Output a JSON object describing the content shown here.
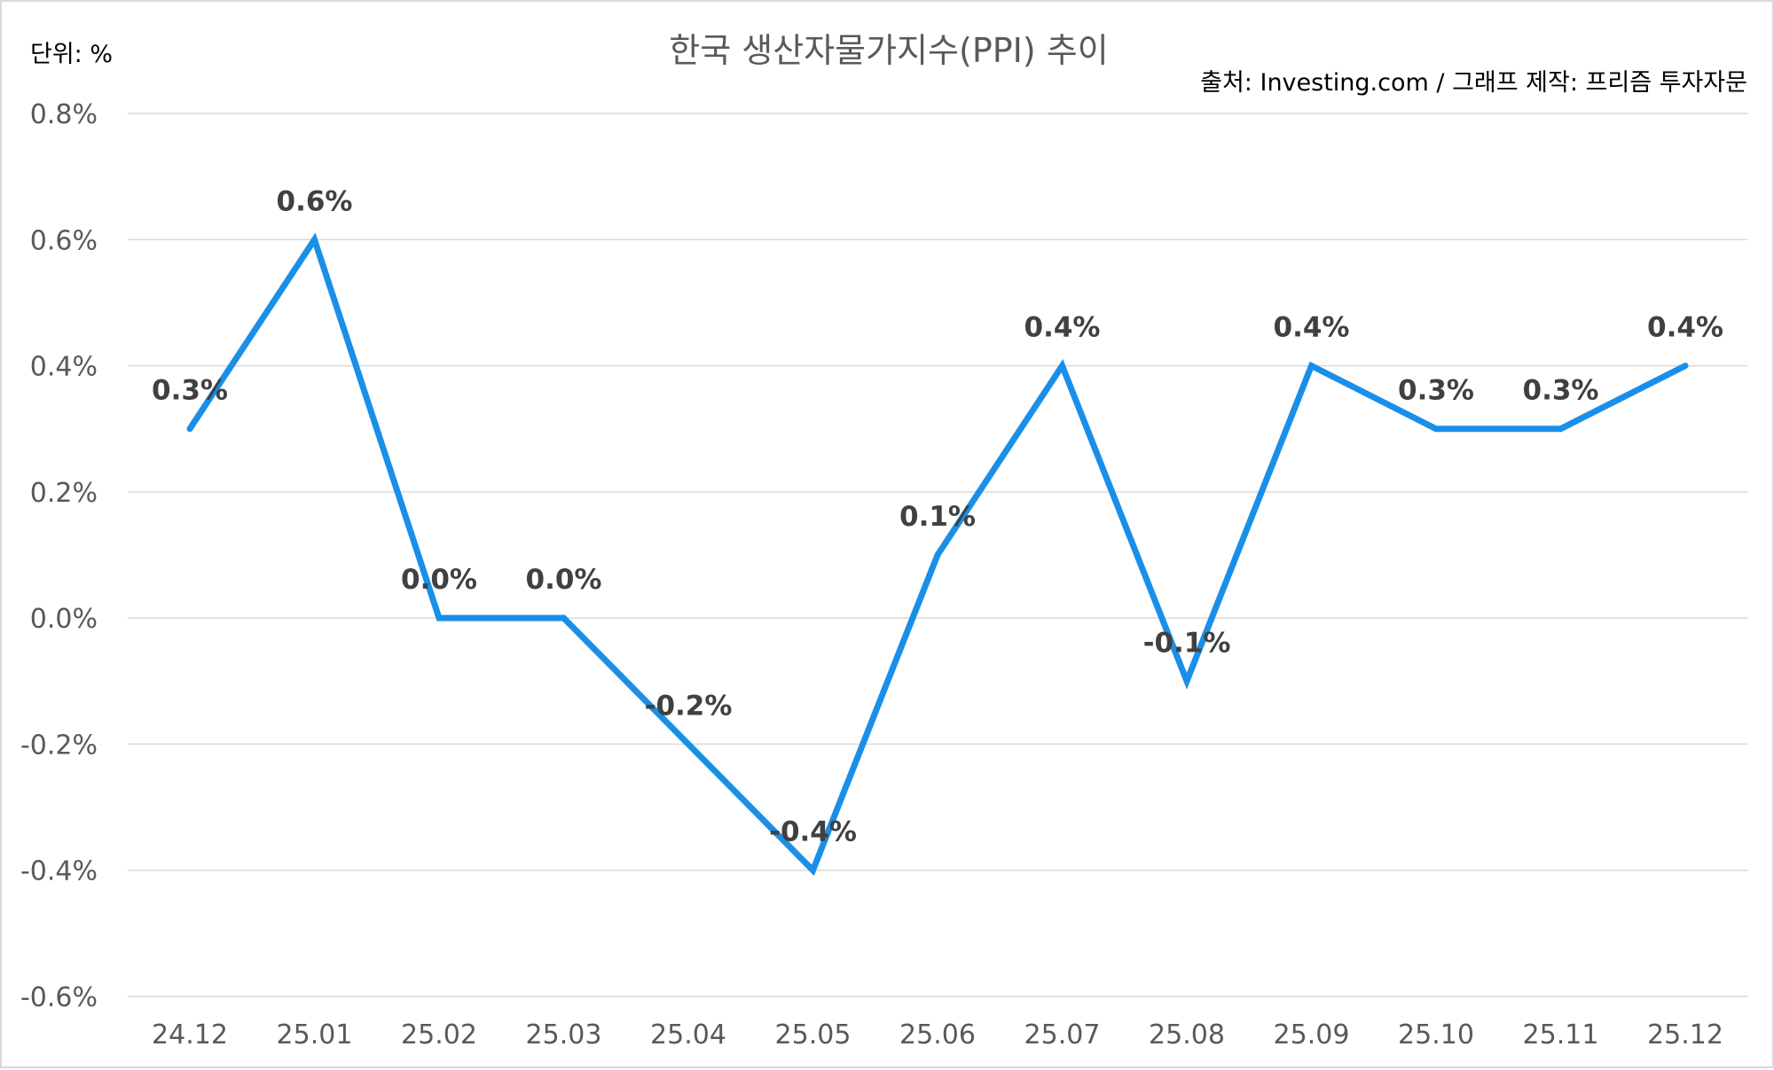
{
  "chart_data": {
    "type": "line",
    "title": "한국 생산자물가지수(PPI) 추이",
    "unit_label": "단위: %",
    "source_label": "출처: Investing.com / 그래프 제작: 프리즘 투자자문",
    "categories": [
      "24.12",
      "25.01",
      "25.02",
      "25.03",
      "25.04",
      "25.05",
      "25.06",
      "25.07",
      "25.08",
      "25.09",
      "25.10",
      "25.11",
      "25.12"
    ],
    "series": [
      {
        "values": [
          0.3,
          0.6,
          0.0,
          0.0,
          -0.2,
          -0.4,
          0.1,
          0.4,
          -0.1,
          0.4,
          0.3,
          0.3,
          0.4
        ],
        "color": "#1a8fe8"
      }
    ],
    "data_labels": [
      "0.3%",
      "0.6%",
      "0.0%",
      "0.0%",
      "-0.2%",
      "-0.4%",
      "0.1%",
      "0.4%",
      "-0.1%",
      "0.4%",
      "0.3%",
      "0.3%",
      "0.4%"
    ],
    "ylim": [
      -0.6,
      0.8
    ],
    "yticks": [
      0.8,
      0.6,
      0.4,
      0.2,
      0.0,
      -0.2,
      -0.4,
      -0.6
    ],
    "ytick_labels": [
      "0.8%",
      "0.6%",
      "0.4%",
      "0.2%",
      "0.0%",
      "-0.2%",
      "-0.4%",
      "-0.6%"
    ],
    "grid": true,
    "legend": "none"
  }
}
